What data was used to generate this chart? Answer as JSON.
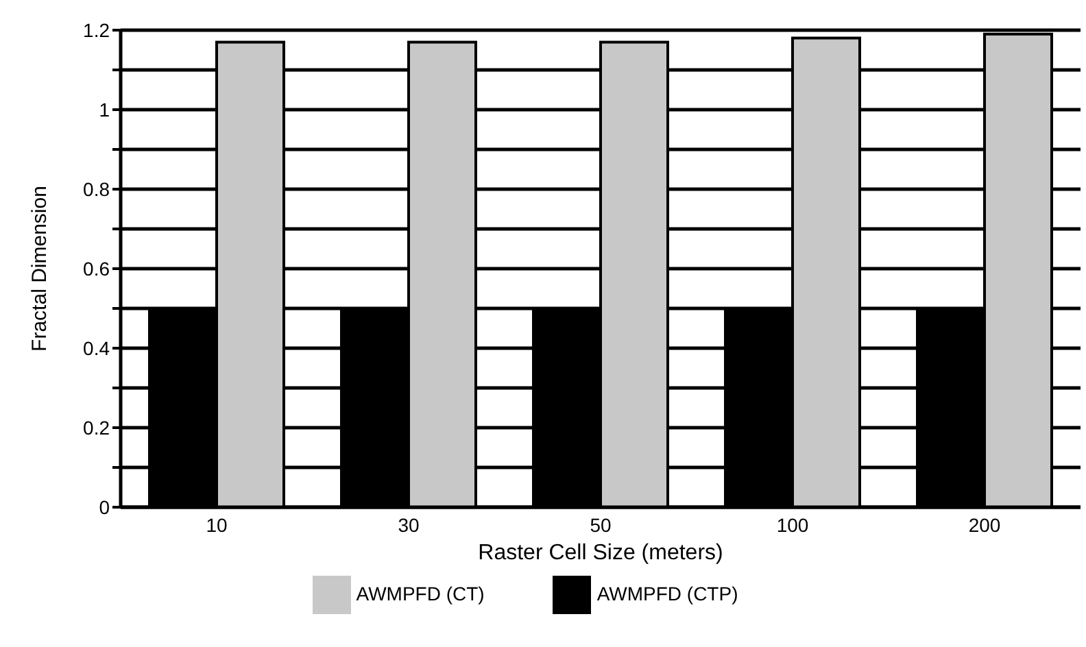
{
  "chart_data": {
    "type": "bar",
    "xlabel": "Raster Cell Size (meters)",
    "ylabel": "Fractal Dimension",
    "categories": [
      "10",
      "30",
      "50",
      "100",
      "200"
    ],
    "series": [
      {
        "name": "AWMPFD (CTP)",
        "color": "#000000",
        "values": [
          0.5,
          0.5,
          0.5,
          0.5,
          0.5
        ]
      },
      {
        "name": "AWMPFD (CT)",
        "color": "#c8c8c8",
        "values": [
          1.17,
          1.17,
          1.17,
          1.18,
          1.19
        ]
      }
    ],
    "ylim": [
      0,
      1.2
    ],
    "yticks": [
      0,
      {
        "value": 0.1,
        "label": null
      },
      0.2,
      {
        "value": 0.3,
        "label": null
      },
      0.4,
      {
        "value": 0.5,
        "label": null
      },
      0.6,
      {
        "value": 0.7,
        "label": null
      },
      0.8,
      {
        "value": 0.9,
        "label": null
      },
      1,
      {
        "value": 1.1,
        "label": null
      },
      1.2
    ],
    "grid": "y",
    "legend": "bottom"
  }
}
